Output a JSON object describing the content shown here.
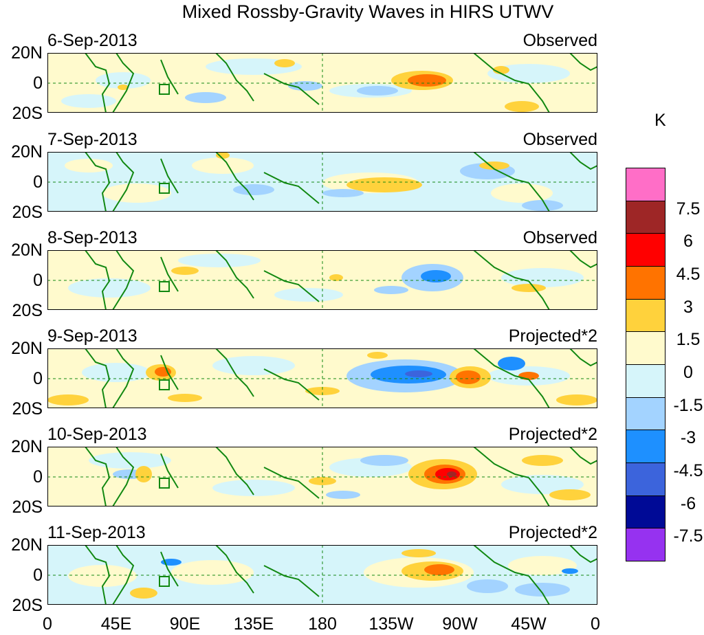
{
  "title": "Mixed Rossby-Gravity Waves in HIRS UTWV",
  "y_ticks": [
    "20N",
    "0",
    "20S"
  ],
  "x_ticks": [
    "0",
    "45E",
    "90E",
    "135E",
    "180",
    "135W",
    "90W",
    "45W",
    "0"
  ],
  "panels": [
    {
      "date": "6-Sep-2013",
      "label": "Observed"
    },
    {
      "date": "7-Sep-2013",
      "label": "Observed"
    },
    {
      "date": "8-Sep-2013",
      "label": "Observed"
    },
    {
      "date": "9-Sep-2013",
      "label": "Projected*2"
    },
    {
      "date": "10-Sep-2013",
      "label": "Projected*2"
    },
    {
      "date": "11-Sep-2013",
      "label": "Projected*2"
    }
  ],
  "colorbar": {
    "unit": "K",
    "levels": [
      "7.5",
      "6",
      "4.5",
      "3",
      "1.5",
      "0",
      "-1.5",
      "-3",
      "-4.5",
      "-6",
      "-7.5"
    ],
    "colors": [
      "#ff6ec7",
      "#9e2626",
      "#ff0000",
      "#ff7300",
      "#ffd23c",
      "#fffacd",
      "#d6f5fa",
      "#a3d3ff",
      "#1e90ff",
      "#3c64dc",
      "#000a96",
      "#9632f0"
    ]
  },
  "map_colors": {
    "land": "#118811",
    "gridline": "#118811"
  }
}
